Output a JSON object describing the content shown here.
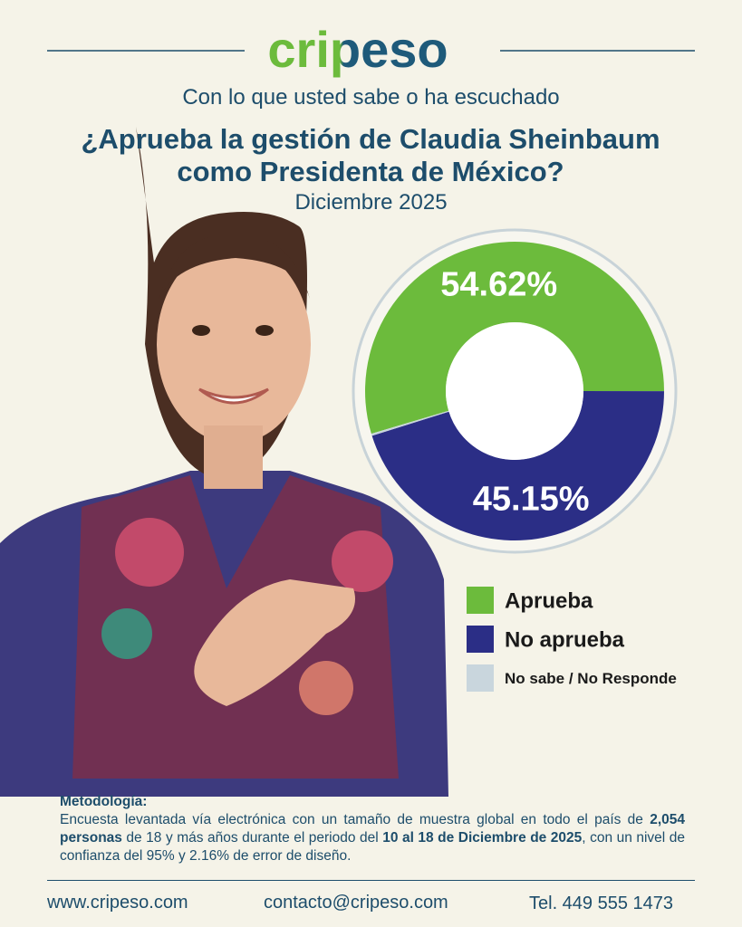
{
  "header": {
    "logo": "cripeso",
    "intro": "Con lo que usted sabe o ha escuchado"
  },
  "chart_data": {
    "type": "pie",
    "donut": true,
    "title": "¿Aprueba la gestión de Claudia Sheinbaum como Presidenta de México?",
    "subtitle": "Diciembre 2025",
    "categories": [
      "Aprueba",
      "No aprueba",
      "No sabe / No Responde"
    ],
    "values": [
      54.62,
      45.15,
      0.23
    ],
    "value_labels": [
      "54.62%",
      "45.15%",
      null
    ],
    "colors": [
      "#6cbb3c",
      "#2b2e86",
      "#c9d6dd"
    ]
  },
  "methodology": {
    "heading": "Metodología:",
    "parts": [
      "Encuesta levantada vía electrónica con un tamaño de muestra global en todo el país de ",
      "2,054 personas",
      " de 18 y más años durante el periodo del ",
      "10 al 18 de Diciembre de 2025",
      ", con un nivel de confianza del 95% y 2.16% de error de diseño."
    ]
  },
  "footer": {
    "web": "www.cripeso.com",
    "email": "contacto@cripeso.com",
    "phone": "Tel. 449 555 1473"
  }
}
